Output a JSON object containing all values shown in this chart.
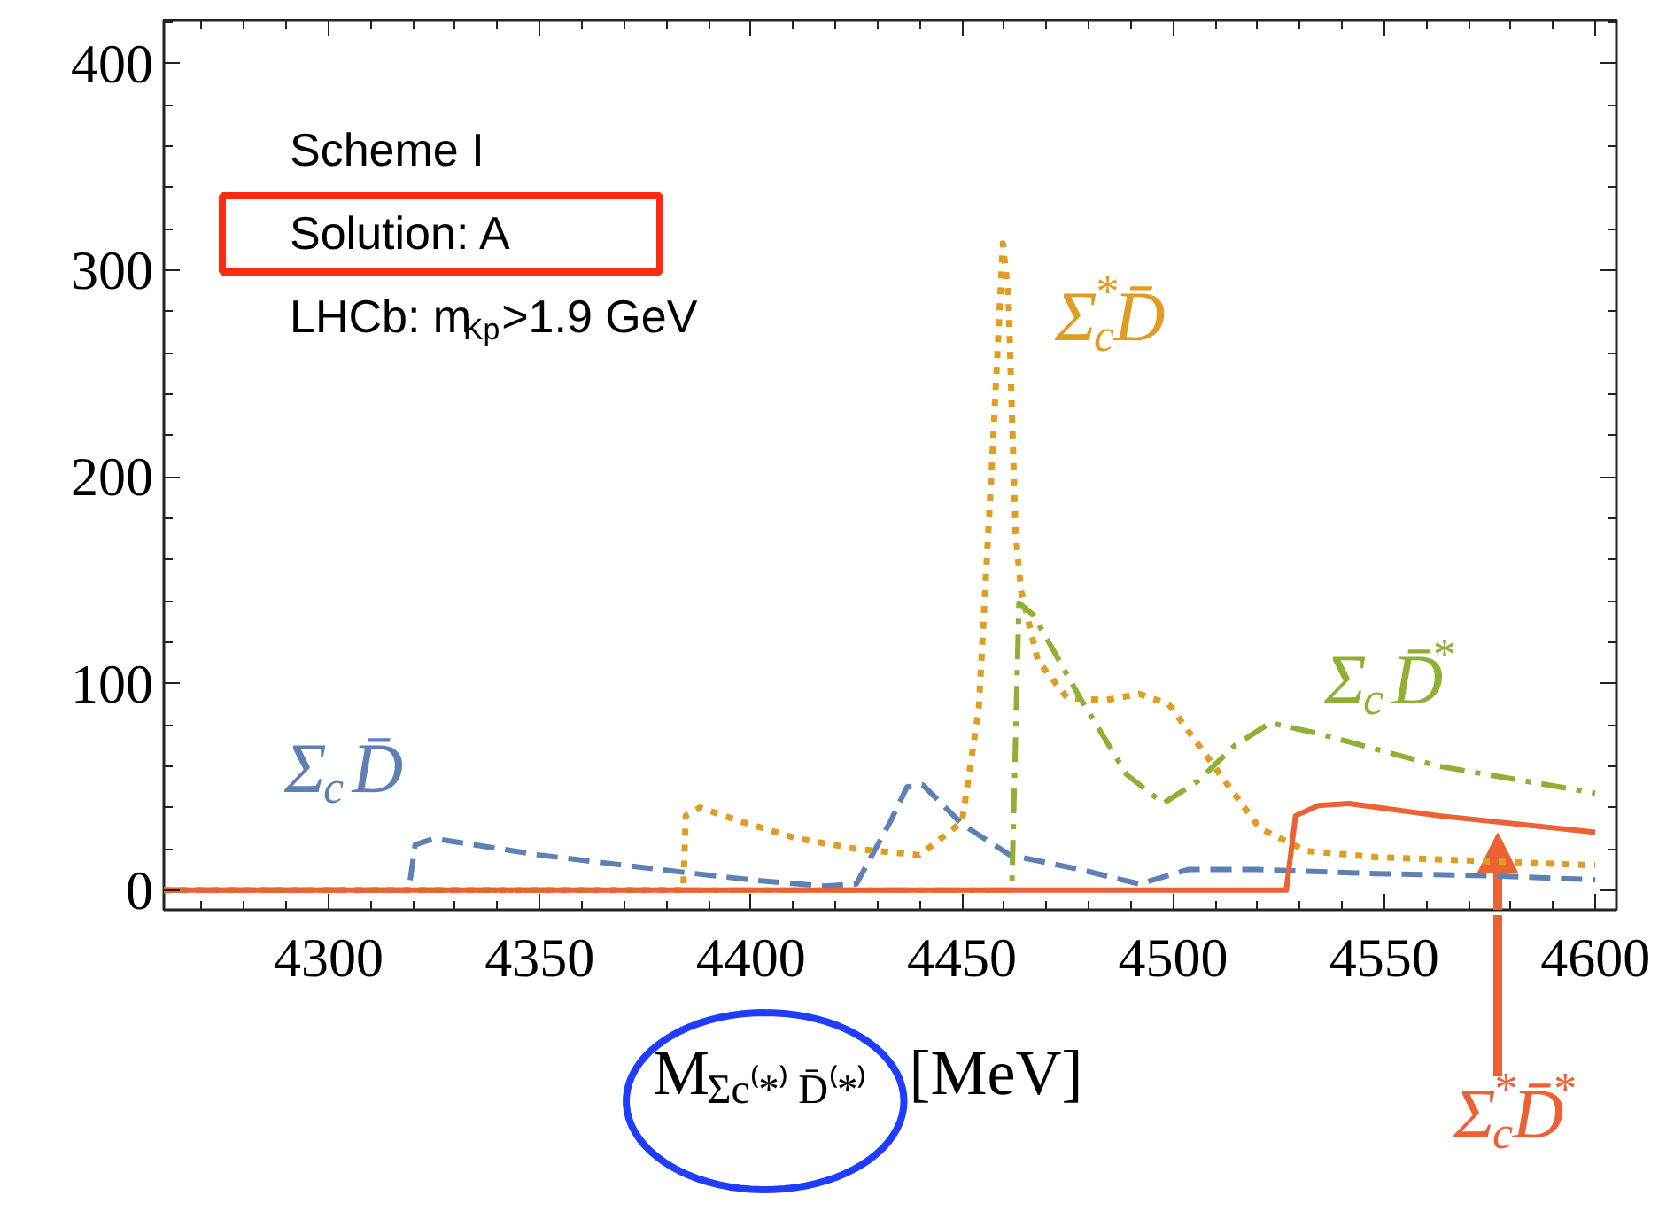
{
  "chart_data": {
    "type": "line",
    "xlabel": "M$_{Σc⁽*⁾ D̄⁽*⁾}$ [MeV]",
    "xlim": [
      4261,
      4605
    ],
    "ylim": [
      -9.5,
      421
    ],
    "xticks": [
      4300,
      4350,
      4400,
      4450,
      4500,
      4550,
      4600
    ],
    "yticks": [
      0,
      100,
      200,
      300,
      400
    ],
    "grid": false,
    "marker": "none",
    "annotations": [
      "Scheme I",
      "Solution: A",
      "LHCb: m$_{Kp}$>1.9 GeV"
    ],
    "series": [
      {
        "name": "Σ$_{c}$D̄",
        "color": "#5e81b5",
        "line_style": "dashed",
        "x": [
          4261,
          4319,
          4320.5,
          4325,
          4350,
          4382.5,
          4400,
          4417.5,
          4425,
          4433,
          4437,
          4440.7,
          4450,
          4461.4,
          4478,
          4492,
          4503.6,
          4520,
          4548,
          4575,
          4600
        ],
        "values": [
          0,
          0,
          22,
          25,
          17,
          9,
          5,
          2,
          3,
          33,
          50,
          51,
          32,
          17,
          10,
          3,
          10,
          10,
          8,
          7,
          5
        ]
      },
      {
        "name": "Σ$_{c}$$^{*}$D̄",
        "color": "#e19c24",
        "line_style": "dotted",
        "x": [
          4261,
          4384,
          4384.6,
          4388,
          4398,
          4411,
          4425,
          4440,
          4450,
          4454,
          4457,
          4459.7,
          4461,
          4462.7,
          4464,
          4468,
          4475,
          4484,
          4492,
          4499,
          4509,
          4520.5,
          4531.5,
          4548,
          4575,
          4600
        ],
        "values": [
          0,
          0,
          36,
          40,
          33,
          25,
          20,
          17,
          33,
          88,
          202,
          313,
          288,
          173,
          145,
          111,
          93,
          92,
          95,
          90,
          62,
          30,
          19,
          16,
          14,
          12
        ]
      },
      {
        "name": "Σ$_{c}$D̄$^{*}$",
        "color": "#8fb032",
        "line_style": "dashdot",
        "x": [
          4261,
          4461.8,
          4463.5,
          4467,
          4478,
          4489,
          4497.7,
          4506,
          4514.6,
          4523,
          4534,
          4563,
          4600
        ],
        "values": [
          0,
          0,
          139,
          133,
          93,
          56,
          42,
          53,
          70,
          81,
          76,
          60,
          47
        ]
      },
      {
        "name": "Σ$_{c}$$^{*}$D̄$^{*}$",
        "color": "#eb6235",
        "line_style": "solid",
        "x": [
          4261,
          4526.8,
          4529,
          4534.4,
          4541.5,
          4563,
          4600
        ],
        "values": [
          0,
          0,
          36,
          41,
          42,
          36,
          28
        ]
      }
    ]
  }
}
